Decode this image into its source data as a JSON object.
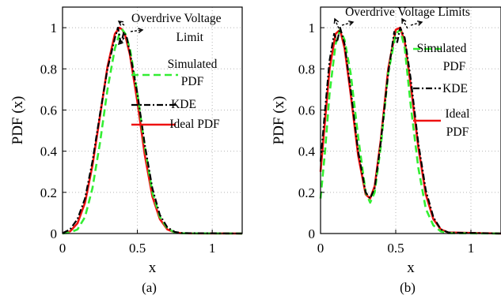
{
  "chart_data": [
    {
      "type": "line",
      "caption": "(a)",
      "xlabel": "x",
      "ylabel": "PDF (x)",
      "xlim": [
        0,
        1.2
      ],
      "ylim": [
        0,
        1.1
      ],
      "xticks": [
        0,
        0.5,
        1
      ],
      "xtick_labels": [
        "0",
        "0.5",
        "1"
      ],
      "yticks": [
        0,
        0.2,
        0.4,
        0.6,
        0.8,
        1
      ],
      "ytick_labels": [
        "0",
        "0.2",
        "0.4",
        "0.6",
        "0.8",
        "1"
      ],
      "grid": true,
      "annotation": "Overdrive Voltage Limit",
      "legend": [
        {
          "label": "Simulated PDF",
          "color": "#33ee33",
          "dash": "dashed"
        },
        {
          "label": "KDE",
          "color": "#000000",
          "dash": "dashdot"
        },
        {
          "label": "Ideal PDF",
          "color": "#ee1111",
          "dash": "solid"
        }
      ],
      "series": [
        {
          "name": "Ideal PDF",
          "color": "#ee1111",
          "style": "solid",
          "x": [
            0,
            0.05,
            0.1,
            0.15,
            0.2,
            0.25,
            0.3,
            0.35,
            0.38,
            0.4,
            0.42,
            0.45,
            0.5,
            0.55,
            0.6,
            0.65,
            0.7,
            0.75,
            0.8,
            1.2
          ],
          "y": [
            0.001,
            0.01,
            0.05,
            0.15,
            0.33,
            0.57,
            0.81,
            0.97,
            1.0,
            0.99,
            0.96,
            0.87,
            0.64,
            0.38,
            0.18,
            0.07,
            0.02,
            0.005,
            0.001,
            0
          ]
        },
        {
          "name": "Simulated PDF",
          "color": "#33ee33",
          "style": "dashed",
          "x": [
            0,
            0.05,
            0.1,
            0.15,
            0.2,
            0.25,
            0.3,
            0.35,
            0.38,
            0.4,
            0.42,
            0.45,
            0.5,
            0.55,
            0.6,
            0.65,
            0.7,
            0.75,
            0.8,
            1.2
          ],
          "y": [
            0,
            0.005,
            0.02,
            0.08,
            0.22,
            0.44,
            0.7,
            0.9,
            0.97,
            0.99,
            0.97,
            0.9,
            0.68,
            0.42,
            0.2,
            0.08,
            0.025,
            0.005,
            0.001,
            0
          ]
        },
        {
          "name": "KDE",
          "color": "#000000",
          "style": "dashdot",
          "x": [
            0,
            0.05,
            0.1,
            0.15,
            0.2,
            0.25,
            0.3,
            0.35,
            0.37,
            0.39,
            0.41,
            0.43,
            0.45,
            0.5,
            0.55,
            0.6,
            0.65,
            0.7,
            0.75,
            0.8,
            1.2
          ],
          "y": [
            0.002,
            0.02,
            0.07,
            0.17,
            0.35,
            0.58,
            0.8,
            0.95,
            1.0,
            0.92,
            0.98,
            0.95,
            0.88,
            0.68,
            0.43,
            0.22,
            0.09,
            0.03,
            0.008,
            0.002,
            0
          ]
        }
      ]
    },
    {
      "type": "line",
      "caption": "(b)",
      "xlabel": "x",
      "ylabel": "PDF (x)",
      "xlim": [
        0,
        1.2
      ],
      "ylim": [
        0,
        1.1
      ],
      "xticks": [
        0,
        0.5,
        1
      ],
      "xtick_labels": [
        "0",
        "0.5",
        "1"
      ],
      "yticks": [
        0,
        0.2,
        0.4,
        0.6,
        0.8,
        1
      ],
      "ytick_labels": [
        "0",
        "0.2",
        "0.4",
        "0.6",
        "0.8",
        "1"
      ],
      "grid": true,
      "annotation": "Overdrive Voltage Limits",
      "legend": [
        {
          "label": "Simulated PDF",
          "color": "#33ee33",
          "dash": "dashed"
        },
        {
          "label": "KDE",
          "color": "#000000",
          "dash": "dashdot"
        },
        {
          "label": "Ideal PDF",
          "color": "#ee1111",
          "dash": "solid"
        }
      ],
      "series": [
        {
          "name": "Ideal PDF",
          "color": "#ee1111",
          "style": "solid",
          "x": [
            0,
            0.03,
            0.06,
            0.1,
            0.13,
            0.16,
            0.2,
            0.25,
            0.3,
            0.33,
            0.36,
            0.4,
            0.45,
            0.5,
            0.53,
            0.56,
            0.6,
            0.65,
            0.7,
            0.75,
            0.8,
            0.85,
            1.2
          ],
          "y": [
            0.3,
            0.55,
            0.8,
            0.97,
            0.99,
            0.9,
            0.68,
            0.38,
            0.19,
            0.17,
            0.23,
            0.45,
            0.8,
            0.99,
            1.0,
            0.93,
            0.72,
            0.42,
            0.19,
            0.07,
            0.02,
            0.005,
            0
          ]
        },
        {
          "name": "Simulated PDF",
          "color": "#33ee33",
          "style": "dashed",
          "x": [
            0,
            0.03,
            0.06,
            0.1,
            0.13,
            0.16,
            0.2,
            0.25,
            0.3,
            0.33,
            0.36,
            0.4,
            0.45,
            0.5,
            0.53,
            0.56,
            0.6,
            0.65,
            0.7,
            0.75,
            0.8,
            0.85,
            1.2
          ],
          "y": [
            0.17,
            0.4,
            0.68,
            0.92,
            0.99,
            0.94,
            0.78,
            0.47,
            0.2,
            0.15,
            0.2,
            0.42,
            0.78,
            0.97,
            0.99,
            0.9,
            0.62,
            0.32,
            0.12,
            0.04,
            0.01,
            0.002,
            0
          ]
        },
        {
          "name": "KDE",
          "color": "#000000",
          "style": "dashdot",
          "x": [
            0,
            0.03,
            0.06,
            0.09,
            0.11,
            0.13,
            0.16,
            0.2,
            0.25,
            0.3,
            0.33,
            0.36,
            0.4,
            0.45,
            0.49,
            0.51,
            0.53,
            0.56,
            0.6,
            0.65,
            0.7,
            0.75,
            0.8,
            0.85,
            1.2
          ],
          "y": [
            0.35,
            0.6,
            0.84,
            0.97,
            0.93,
            1.0,
            0.92,
            0.7,
            0.4,
            0.2,
            0.17,
            0.22,
            0.44,
            0.78,
            0.98,
            0.93,
            1.0,
            0.95,
            0.75,
            0.44,
            0.21,
            0.08,
            0.02,
            0.005,
            0
          ]
        }
      ]
    }
  ]
}
